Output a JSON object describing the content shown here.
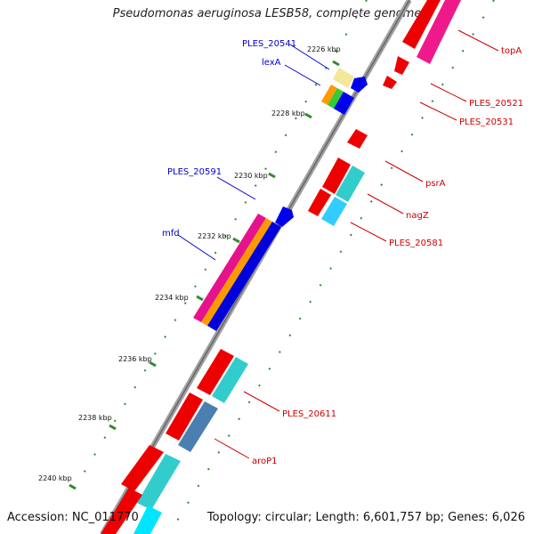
{
  "header": {
    "title": "Pseudomonas aeruginosa LESB58, complete genome"
  },
  "footer": {
    "accession": "Accession: NC_011770",
    "summary": "Topology: circular; Length: 6,601,757 bp; Genes: 6,026"
  },
  "colors": {
    "backbone": "#8c8c8c",
    "tick": "#228b22",
    "label_left": "#0000cc",
    "label_right": "#cc0000"
  },
  "ticks": [
    "2226 kbp",
    "2228 kbp",
    "2230 kbp",
    "2232 kbp",
    "2234 kbp",
    "2236 kbp",
    "2238 kbp",
    "2240 kbp"
  ],
  "left_labels": [
    "PLES_20541",
    "lexA",
    "PLES_20591",
    "mfd"
  ],
  "right_labels": [
    "topA",
    "PLES_20521",
    "PLES_20531",
    "psrA",
    "nagZ",
    "PLES_20581",
    "PLES_20611",
    "aroP1"
  ]
}
